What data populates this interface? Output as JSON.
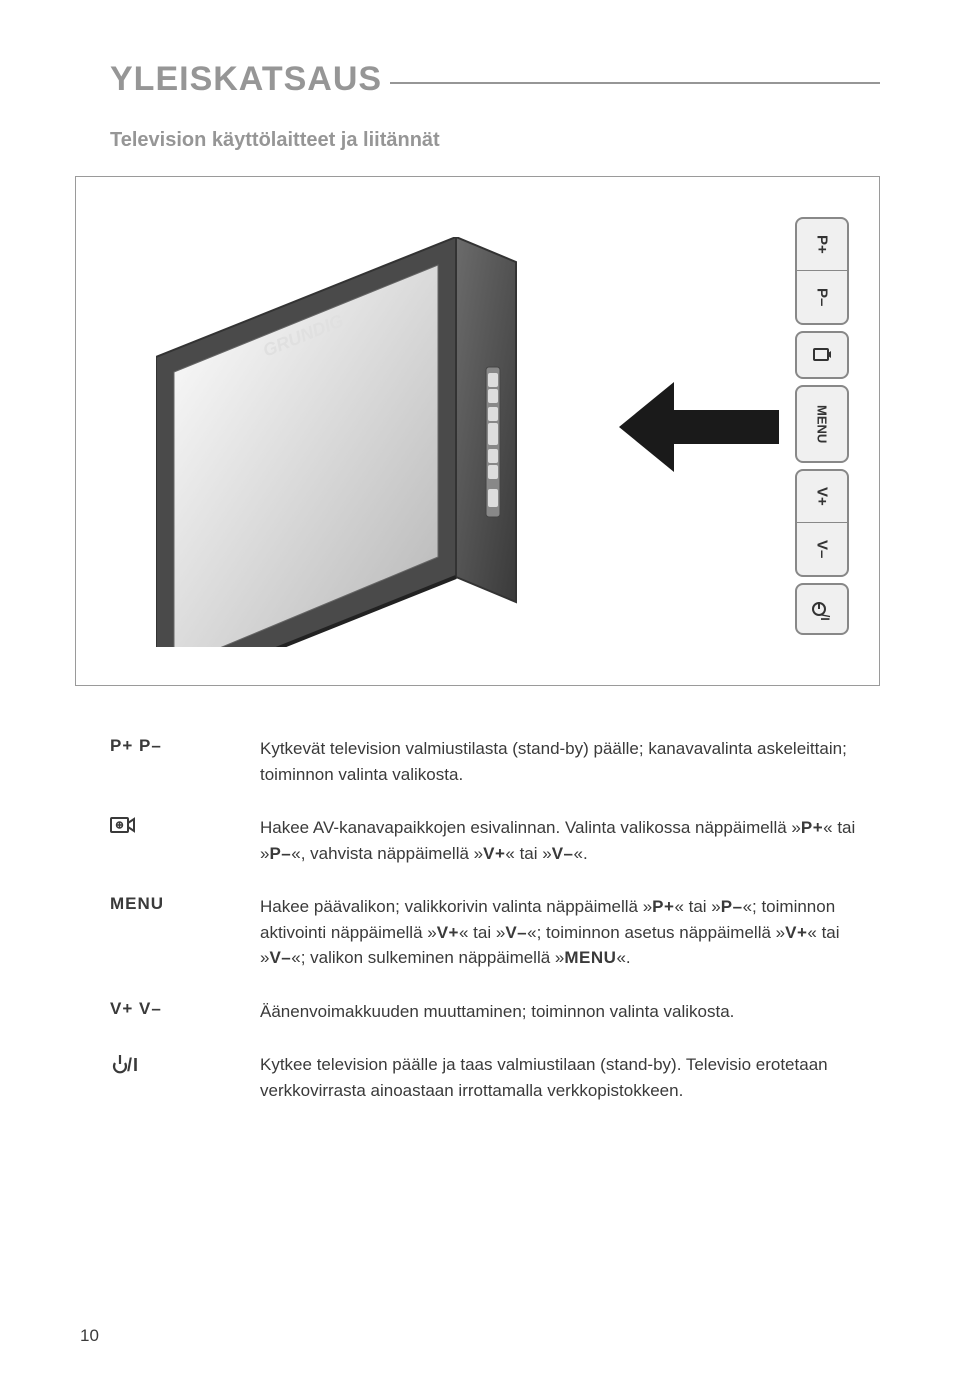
{
  "page": {
    "title": "YLEISKATSAUS",
    "subtitle": "Television käyttölaitteet ja liitännät",
    "page_number": "10"
  },
  "side_buttons": {
    "p_plus": "P+",
    "p_minus": "P–",
    "av": "⊕",
    "menu": "MENU",
    "v_plus": "V+",
    "v_minus": "V–",
    "power": "⏻/I"
  },
  "rows": [
    {
      "label": "P+  P–",
      "desc_html": "Kytkevät television valmiustilasta (stand-by) päälle; kanavavalinta askeleittain; toiminnon valinta valikosta."
    },
    {
      "label": "__AV_ICON__",
      "desc_html": "Hakee AV-kanavapaikkojen esivalinnan. Valinta valikossa näppäimellä »<b>P+</b>« tai »<b>P–</b>«, vahvista näppäimellä »<b>V+</b>« tai »<b>V–</b>«."
    },
    {
      "label": "MENU",
      "desc_html": "Hakee päävalikon; valikkorivin valinta näppäimellä »<b>P+</b>« tai »<b>P–</b>«; toiminnon aktivointi näppäimellä »<b>V+</b>« tai »<b>V–</b>«; toiminnon asetus näppäimellä »<b>V+</b>« tai »<b>V–</b>«; valikon sulkeminen näppäimellä »<b>MENU</b>«."
    },
    {
      "label": "V+  V–",
      "desc_html": "Äänenvoimakkuuden muuttaminen; toiminnon valinta valikosta."
    },
    {
      "label": "__PWR_ICON__",
      "desc_html": "Kytkee television päälle ja taas valmiustilaan (stand-by). Televisio erotetaan verkkovirrasta ainoastaan irrottamalla verkkopistokkeen."
    }
  ],
  "colors": {
    "gray_title": "#969696",
    "text": "#3a3a3a",
    "border": "#9a9a9a"
  }
}
